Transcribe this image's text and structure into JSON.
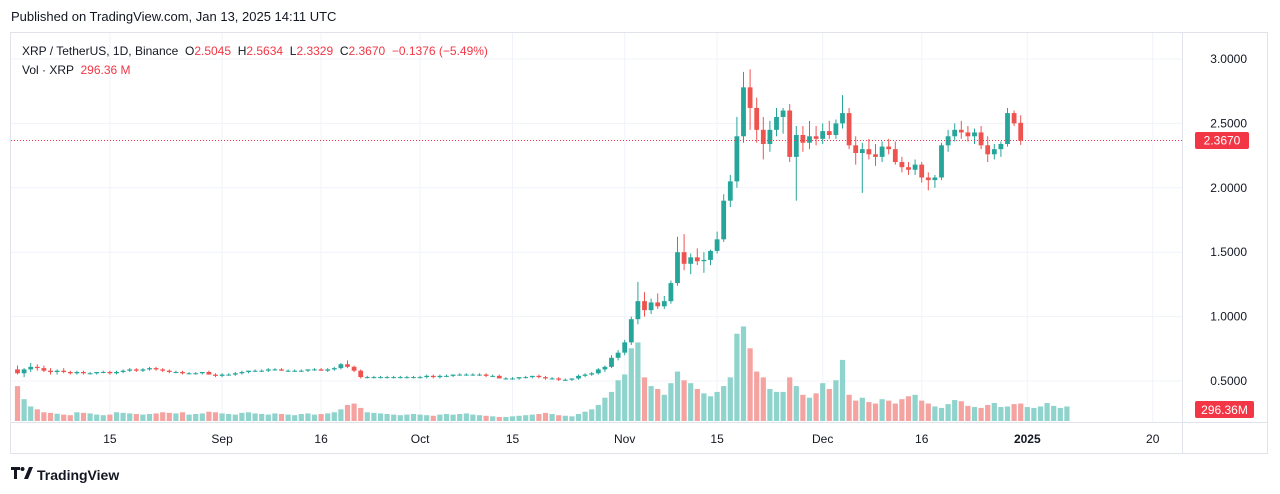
{
  "published": "Published on TradingView.com, Jan 13, 2025 14:11 UTC",
  "legend": {
    "symbol": "XRP / TetherUS, 1D, Binance",
    "o_label": "O",
    "o_value": "2.5045",
    "h_label": "H",
    "h_value": "2.5634",
    "l_label": "L",
    "l_value": "2.3329",
    "c_label": "C",
    "c_value": "2.3670",
    "change": "−0.1376 (−5.49%)",
    "vol_label": "Vol · XRP",
    "vol_value": "296.36 M"
  },
  "price_tag": "2.3670",
  "volume_tag": "296.36M",
  "footer": {
    "brand": "TradingView",
    "logo_icon": "tradingview-logo-icon"
  },
  "colors": {
    "up": "#26a69a",
    "down": "#ef5350",
    "vol_up": "#8fd3cd",
    "vol_down": "#f5a3a1",
    "grid": "#f0f3fa"
  },
  "chart_data": {
    "type": "candlestick",
    "y_ticks": [
      "3.0000",
      "2.5000",
      "2.0000",
      "1.5000",
      "1.0000",
      "0.5000"
    ],
    "ylim": [
      0.3,
      3.1
    ],
    "x_ticks": [
      {
        "label": "15",
        "day": 14
      },
      {
        "label": "Sep",
        "day": 31
      },
      {
        "label": "16",
        "day": 46
      },
      {
        "label": "Oct",
        "day": 61
      },
      {
        "label": "15",
        "day": 75
      },
      {
        "label": "Nov",
        "day": 92
      },
      {
        "label": "15",
        "day": 106
      },
      {
        "label": "Dec",
        "day": 122
      },
      {
        "label": "16",
        "day": 137
      },
      {
        "label": "2025",
        "day": 153,
        "bold": true
      },
      {
        "label": "20",
        "day": 172
      }
    ],
    "last_close": 2.367,
    "candles": [
      {
        "o": 0.59,
        "h": 0.62,
        "l": 0.55,
        "c": 0.56
      },
      {
        "o": 0.56,
        "h": 0.6,
        "l": 0.53,
        "c": 0.59
      },
      {
        "o": 0.59,
        "h": 0.64,
        "l": 0.57,
        "c": 0.61
      },
      {
        "o": 0.61,
        "h": 0.63,
        "l": 0.58,
        "c": 0.6
      },
      {
        "o": 0.6,
        "h": 0.62,
        "l": 0.57,
        "c": 0.58
      },
      {
        "o": 0.58,
        "h": 0.6,
        "l": 0.55,
        "c": 0.57
      },
      {
        "o": 0.57,
        "h": 0.59,
        "l": 0.55,
        "c": 0.58
      },
      {
        "o": 0.58,
        "h": 0.6,
        "l": 0.56,
        "c": 0.57
      },
      {
        "o": 0.57,
        "h": 0.58,
        "l": 0.55,
        "c": 0.56
      },
      {
        "o": 0.56,
        "h": 0.58,
        "l": 0.55,
        "c": 0.57
      },
      {
        "o": 0.57,
        "h": 0.58,
        "l": 0.55,
        "c": 0.56
      },
      {
        "o": 0.56,
        "h": 0.57,
        "l": 0.55,
        "c": 0.56
      },
      {
        "o": 0.56,
        "h": 0.57,
        "l": 0.55,
        "c": 0.57
      },
      {
        "o": 0.57,
        "h": 0.58,
        "l": 0.56,
        "c": 0.57
      },
      {
        "o": 0.57,
        "h": 0.58,
        "l": 0.55,
        "c": 0.56
      },
      {
        "o": 0.56,
        "h": 0.58,
        "l": 0.55,
        "c": 0.57
      },
      {
        "o": 0.57,
        "h": 0.59,
        "l": 0.56,
        "c": 0.58
      },
      {
        "o": 0.58,
        "h": 0.6,
        "l": 0.57,
        "c": 0.59
      },
      {
        "o": 0.59,
        "h": 0.6,
        "l": 0.57,
        "c": 0.58
      },
      {
        "o": 0.58,
        "h": 0.6,
        "l": 0.57,
        "c": 0.59
      },
      {
        "o": 0.59,
        "h": 0.61,
        "l": 0.58,
        "c": 0.6
      },
      {
        "o": 0.6,
        "h": 0.61,
        "l": 0.58,
        "c": 0.59
      },
      {
        "o": 0.59,
        "h": 0.6,
        "l": 0.57,
        "c": 0.58
      },
      {
        "o": 0.58,
        "h": 0.59,
        "l": 0.56,
        "c": 0.57
      },
      {
        "o": 0.57,
        "h": 0.58,
        "l": 0.56,
        "c": 0.57
      },
      {
        "o": 0.57,
        "h": 0.58,
        "l": 0.55,
        "c": 0.56
      },
      {
        "o": 0.56,
        "h": 0.57,
        "l": 0.55,
        "c": 0.56
      },
      {
        "o": 0.56,
        "h": 0.57,
        "l": 0.55,
        "c": 0.56
      },
      {
        "o": 0.56,
        "h": 0.57,
        "l": 0.55,
        "c": 0.57
      },
      {
        "o": 0.57,
        "h": 0.58,
        "l": 0.55,
        "c": 0.55
      },
      {
        "o": 0.55,
        "h": 0.56,
        "l": 0.53,
        "c": 0.54
      },
      {
        "o": 0.54,
        "h": 0.56,
        "l": 0.53,
        "c": 0.55
      },
      {
        "o": 0.55,
        "h": 0.56,
        "l": 0.54,
        "c": 0.55
      },
      {
        "o": 0.55,
        "h": 0.57,
        "l": 0.54,
        "c": 0.56
      },
      {
        "o": 0.56,
        "h": 0.58,
        "l": 0.55,
        "c": 0.57
      },
      {
        "o": 0.57,
        "h": 0.58,
        "l": 0.56,
        "c": 0.58
      },
      {
        "o": 0.58,
        "h": 0.59,
        "l": 0.57,
        "c": 0.58
      },
      {
        "o": 0.58,
        "h": 0.59,
        "l": 0.57,
        "c": 0.58
      },
      {
        "o": 0.58,
        "h": 0.6,
        "l": 0.57,
        "c": 0.59
      },
      {
        "o": 0.59,
        "h": 0.6,
        "l": 0.58,
        "c": 0.59
      },
      {
        "o": 0.59,
        "h": 0.6,
        "l": 0.58,
        "c": 0.58
      },
      {
        "o": 0.58,
        "h": 0.59,
        "l": 0.57,
        "c": 0.58
      },
      {
        "o": 0.58,
        "h": 0.59,
        "l": 0.57,
        "c": 0.58
      },
      {
        "o": 0.58,
        "h": 0.59,
        "l": 0.57,
        "c": 0.58
      },
      {
        "o": 0.58,
        "h": 0.59,
        "l": 0.57,
        "c": 0.59
      },
      {
        "o": 0.59,
        "h": 0.6,
        "l": 0.58,
        "c": 0.59
      },
      {
        "o": 0.59,
        "h": 0.6,
        "l": 0.58,
        "c": 0.58
      },
      {
        "o": 0.58,
        "h": 0.6,
        "l": 0.57,
        "c": 0.59
      },
      {
        "o": 0.59,
        "h": 0.61,
        "l": 0.58,
        "c": 0.6
      },
      {
        "o": 0.6,
        "h": 0.64,
        "l": 0.59,
        "c": 0.63
      },
      {
        "o": 0.63,
        "h": 0.66,
        "l": 0.6,
        "c": 0.61
      },
      {
        "o": 0.61,
        "h": 0.62,
        "l": 0.57,
        "c": 0.58
      },
      {
        "o": 0.58,
        "h": 0.59,
        "l": 0.52,
        "c": 0.53
      },
      {
        "o": 0.53,
        "h": 0.54,
        "l": 0.52,
        "c": 0.53
      },
      {
        "o": 0.53,
        "h": 0.54,
        "l": 0.52,
        "c": 0.53
      },
      {
        "o": 0.53,
        "h": 0.54,
        "l": 0.52,
        "c": 0.53
      },
      {
        "o": 0.53,
        "h": 0.54,
        "l": 0.52,
        "c": 0.53
      },
      {
        "o": 0.53,
        "h": 0.54,
        "l": 0.52,
        "c": 0.53
      },
      {
        "o": 0.53,
        "h": 0.54,
        "l": 0.52,
        "c": 0.53
      },
      {
        "o": 0.53,
        "h": 0.54,
        "l": 0.52,
        "c": 0.53
      },
      {
        "o": 0.53,
        "h": 0.54,
        "l": 0.52,
        "c": 0.53
      },
      {
        "o": 0.53,
        "h": 0.54,
        "l": 0.52,
        "c": 0.53
      },
      {
        "o": 0.53,
        "h": 0.55,
        "l": 0.52,
        "c": 0.54
      },
      {
        "o": 0.54,
        "h": 0.55,
        "l": 0.52,
        "c": 0.53
      },
      {
        "o": 0.53,
        "h": 0.55,
        "l": 0.52,
        "c": 0.54
      },
      {
        "o": 0.54,
        "h": 0.55,
        "l": 0.53,
        "c": 0.54
      },
      {
        "o": 0.54,
        "h": 0.55,
        "l": 0.53,
        "c": 0.55
      },
      {
        "o": 0.55,
        "h": 0.56,
        "l": 0.54,
        "c": 0.55
      },
      {
        "o": 0.55,
        "h": 0.56,
        "l": 0.54,
        "c": 0.55
      },
      {
        "o": 0.55,
        "h": 0.56,
        "l": 0.54,
        "c": 0.55
      },
      {
        "o": 0.55,
        "h": 0.56,
        "l": 0.54,
        "c": 0.55
      },
      {
        "o": 0.55,
        "h": 0.56,
        "l": 0.53,
        "c": 0.54
      },
      {
        "o": 0.54,
        "h": 0.55,
        "l": 0.53,
        "c": 0.54
      },
      {
        "o": 0.54,
        "h": 0.55,
        "l": 0.52,
        "c": 0.52
      },
      {
        "o": 0.52,
        "h": 0.53,
        "l": 0.51,
        "c": 0.52
      },
      {
        "o": 0.52,
        "h": 0.53,
        "l": 0.51,
        "c": 0.52
      },
      {
        "o": 0.52,
        "h": 0.53,
        "l": 0.51,
        "c": 0.53
      },
      {
        "o": 0.53,
        "h": 0.54,
        "l": 0.52,
        "c": 0.53
      },
      {
        "o": 0.53,
        "h": 0.54,
        "l": 0.52,
        "c": 0.54
      },
      {
        "o": 0.54,
        "h": 0.55,
        "l": 0.52,
        "c": 0.53
      },
      {
        "o": 0.53,
        "h": 0.54,
        "l": 0.51,
        "c": 0.52
      },
      {
        "o": 0.52,
        "h": 0.53,
        "l": 0.51,
        "c": 0.52
      },
      {
        "o": 0.52,
        "h": 0.53,
        "l": 0.5,
        "c": 0.51
      },
      {
        "o": 0.51,
        "h": 0.52,
        "l": 0.5,
        "c": 0.51
      },
      {
        "o": 0.51,
        "h": 0.52,
        "l": 0.5,
        "c": 0.52
      },
      {
        "o": 0.52,
        "h": 0.55,
        "l": 0.51,
        "c": 0.54
      },
      {
        "o": 0.54,
        "h": 0.56,
        "l": 0.53,
        "c": 0.55
      },
      {
        "o": 0.55,
        "h": 0.57,
        "l": 0.54,
        "c": 0.56
      },
      {
        "o": 0.56,
        "h": 0.6,
        "l": 0.55,
        "c": 0.59
      },
      {
        "o": 0.59,
        "h": 0.62,
        "l": 0.57,
        "c": 0.61
      },
      {
        "o": 0.61,
        "h": 0.7,
        "l": 0.6,
        "c": 0.68
      },
      {
        "o": 0.68,
        "h": 0.74,
        "l": 0.66,
        "c": 0.72
      },
      {
        "o": 0.72,
        "h": 0.82,
        "l": 0.7,
        "c": 0.8
      },
      {
        "o": 0.8,
        "h": 1.0,
        "l": 0.78,
        "c": 0.98
      },
      {
        "o": 0.98,
        "h": 1.27,
        "l": 0.94,
        "c": 1.12
      },
      {
        "o": 1.12,
        "h": 1.19,
        "l": 1.0,
        "c": 1.05
      },
      {
        "o": 1.05,
        "h": 1.14,
        "l": 1.02,
        "c": 1.11
      },
      {
        "o": 1.11,
        "h": 1.18,
        "l": 1.06,
        "c": 1.08
      },
      {
        "o": 1.08,
        "h": 1.16,
        "l": 1.06,
        "c": 1.12
      },
      {
        "o": 1.12,
        "h": 1.28,
        "l": 1.1,
        "c": 1.26
      },
      {
        "o": 1.26,
        "h": 1.62,
        "l": 1.24,
        "c": 1.5
      },
      {
        "o": 1.5,
        "h": 1.64,
        "l": 1.36,
        "c": 1.41
      },
      {
        "o": 1.41,
        "h": 1.49,
        "l": 1.33,
        "c": 1.46
      },
      {
        "o": 1.46,
        "h": 1.53,
        "l": 1.4,
        "c": 1.43
      },
      {
        "o": 1.43,
        "h": 1.5,
        "l": 1.34,
        "c": 1.44
      },
      {
        "o": 1.44,
        "h": 1.52,
        "l": 1.4,
        "c": 1.51
      },
      {
        "o": 1.51,
        "h": 1.66,
        "l": 1.49,
        "c": 1.6
      },
      {
        "o": 1.6,
        "h": 1.95,
        "l": 1.58,
        "c": 1.9
      },
      {
        "o": 1.9,
        "h": 2.1,
        "l": 1.85,
        "c": 2.05
      },
      {
        "o": 2.05,
        "h": 2.55,
        "l": 2.0,
        "c": 2.4
      },
      {
        "o": 2.4,
        "h": 2.9,
        "l": 2.35,
        "c": 2.78
      },
      {
        "o": 2.78,
        "h": 2.92,
        "l": 2.45,
        "c": 2.62
      },
      {
        "o": 2.62,
        "h": 2.7,
        "l": 2.35,
        "c": 2.45
      },
      {
        "o": 2.45,
        "h": 2.55,
        "l": 2.22,
        "c": 2.34
      },
      {
        "o": 2.34,
        "h": 2.52,
        "l": 2.28,
        "c": 2.45
      },
      {
        "o": 2.45,
        "h": 2.62,
        "l": 2.4,
        "c": 2.55
      },
      {
        "o": 2.55,
        "h": 2.62,
        "l": 2.42,
        "c": 2.6
      },
      {
        "o": 2.6,
        "h": 2.65,
        "l": 2.2,
        "c": 2.24
      },
      {
        "o": 2.24,
        "h": 2.48,
        "l": 1.9,
        "c": 2.41
      },
      {
        "o": 2.41,
        "h": 2.48,
        "l": 2.28,
        "c": 2.35
      },
      {
        "o": 2.35,
        "h": 2.52,
        "l": 2.3,
        "c": 2.4
      },
      {
        "o": 2.4,
        "h": 2.48,
        "l": 2.33,
        "c": 2.38
      },
      {
        "o": 2.38,
        "h": 2.5,
        "l": 2.34,
        "c": 2.44
      },
      {
        "o": 2.44,
        "h": 2.52,
        "l": 2.38,
        "c": 2.41
      },
      {
        "o": 2.41,
        "h": 2.53,
        "l": 2.38,
        "c": 2.5
      },
      {
        "o": 2.5,
        "h": 2.72,
        "l": 2.46,
        "c": 2.58
      },
      {
        "o": 2.58,
        "h": 2.62,
        "l": 2.3,
        "c": 2.33
      },
      {
        "o": 2.33,
        "h": 2.4,
        "l": 2.18,
        "c": 2.27
      },
      {
        "o": 2.27,
        "h": 2.35,
        "l": 1.96,
        "c": 2.3
      },
      {
        "o": 2.3,
        "h": 2.38,
        "l": 2.22,
        "c": 2.26
      },
      {
        "o": 2.26,
        "h": 2.34,
        "l": 2.17,
        "c": 2.24
      },
      {
        "o": 2.24,
        "h": 2.36,
        "l": 2.2,
        "c": 2.32
      },
      {
        "o": 2.32,
        "h": 2.38,
        "l": 2.26,
        "c": 2.3
      },
      {
        "o": 2.3,
        "h": 2.36,
        "l": 2.18,
        "c": 2.2
      },
      {
        "o": 2.2,
        "h": 2.24,
        "l": 2.12,
        "c": 2.16
      },
      {
        "o": 2.16,
        "h": 2.2,
        "l": 2.1,
        "c": 2.14
      },
      {
        "o": 2.14,
        "h": 2.22,
        "l": 2.1,
        "c": 2.18
      },
      {
        "o": 2.18,
        "h": 2.2,
        "l": 2.04,
        "c": 2.08
      },
      {
        "o": 2.08,
        "h": 2.12,
        "l": 1.98,
        "c": 2.06
      },
      {
        "o": 2.06,
        "h": 2.1,
        "l": 2.0,
        "c": 2.08
      },
      {
        "o": 2.08,
        "h": 2.35,
        "l": 2.06,
        "c": 2.33
      },
      {
        "o": 2.33,
        "h": 2.45,
        "l": 2.28,
        "c": 2.4
      },
      {
        "o": 2.4,
        "h": 2.5,
        "l": 2.36,
        "c": 2.45
      },
      {
        "o": 2.45,
        "h": 2.52,
        "l": 2.38,
        "c": 2.43
      },
      {
        "o": 2.43,
        "h": 2.48,
        "l": 2.36,
        "c": 2.4
      },
      {
        "o": 2.4,
        "h": 2.46,
        "l": 2.34,
        "c": 2.43
      },
      {
        "o": 2.43,
        "h": 2.48,
        "l": 2.3,
        "c": 2.33
      },
      {
        "o": 2.33,
        "h": 2.4,
        "l": 2.2,
        "c": 2.26
      },
      {
        "o": 2.26,
        "h": 2.34,
        "l": 2.22,
        "c": 2.3
      },
      {
        "o": 2.3,
        "h": 2.36,
        "l": 2.24,
        "c": 2.34
      },
      {
        "o": 2.34,
        "h": 2.62,
        "l": 2.32,
        "c": 2.58
      },
      {
        "o": 2.58,
        "h": 2.6,
        "l": 2.48,
        "c": 2.5
      },
      {
        "o": 2.5045,
        "h": 2.5634,
        "l": 2.3329,
        "c": 2.367
      }
    ],
    "volume": [
      120,
      75,
      50,
      40,
      30,
      28,
      25,
      22,
      20,
      30,
      28,
      26,
      22,
      20,
      22,
      30,
      28,
      26,
      24,
      22,
      24,
      26,
      30,
      28,
      26,
      30,
      22,
      24,
      26,
      32,
      30,
      26,
      24,
      22,
      28,
      30,
      26,
      24,
      22,
      26,
      24,
      22,
      20,
      24,
      26,
      22,
      24,
      26,
      30,
      40,
      55,
      60,
      45,
      30,
      28,
      26,
      24,
      22,
      20,
      22,
      24,
      22,
      20,
      18,
      22,
      24,
      22,
      24,
      26,
      22,
      20,
      18,
      16,
      14,
      14,
      16,
      18,
      20,
      22,
      24,
      28,
      24,
      20,
      18,
      16,
      24,
      32,
      40,
      55,
      80,
      100,
      140,
      160,
      250,
      270,
      150,
      120,
      110,
      90,
      130,
      170,
      140,
      130,
      110,
      95,
      85,
      100,
      120,
      150,
      300,
      325,
      250,
      170,
      150,
      110,
      100,
      100,
      150,
      120,
      90,
      80,
      95,
      130,
      110,
      140,
      210,
      90,
      70,
      80,
      65,
      60,
      75,
      70,
      60,
      75,
      85,
      90,
      70,
      60,
      50,
      45,
      58,
      72,
      68,
      52,
      48,
      45,
      55,
      62,
      48,
      50,
      58,
      60,
      48,
      45,
      50,
      62,
      52,
      45,
      50
    ],
    "volume_scale_max": 330
  }
}
